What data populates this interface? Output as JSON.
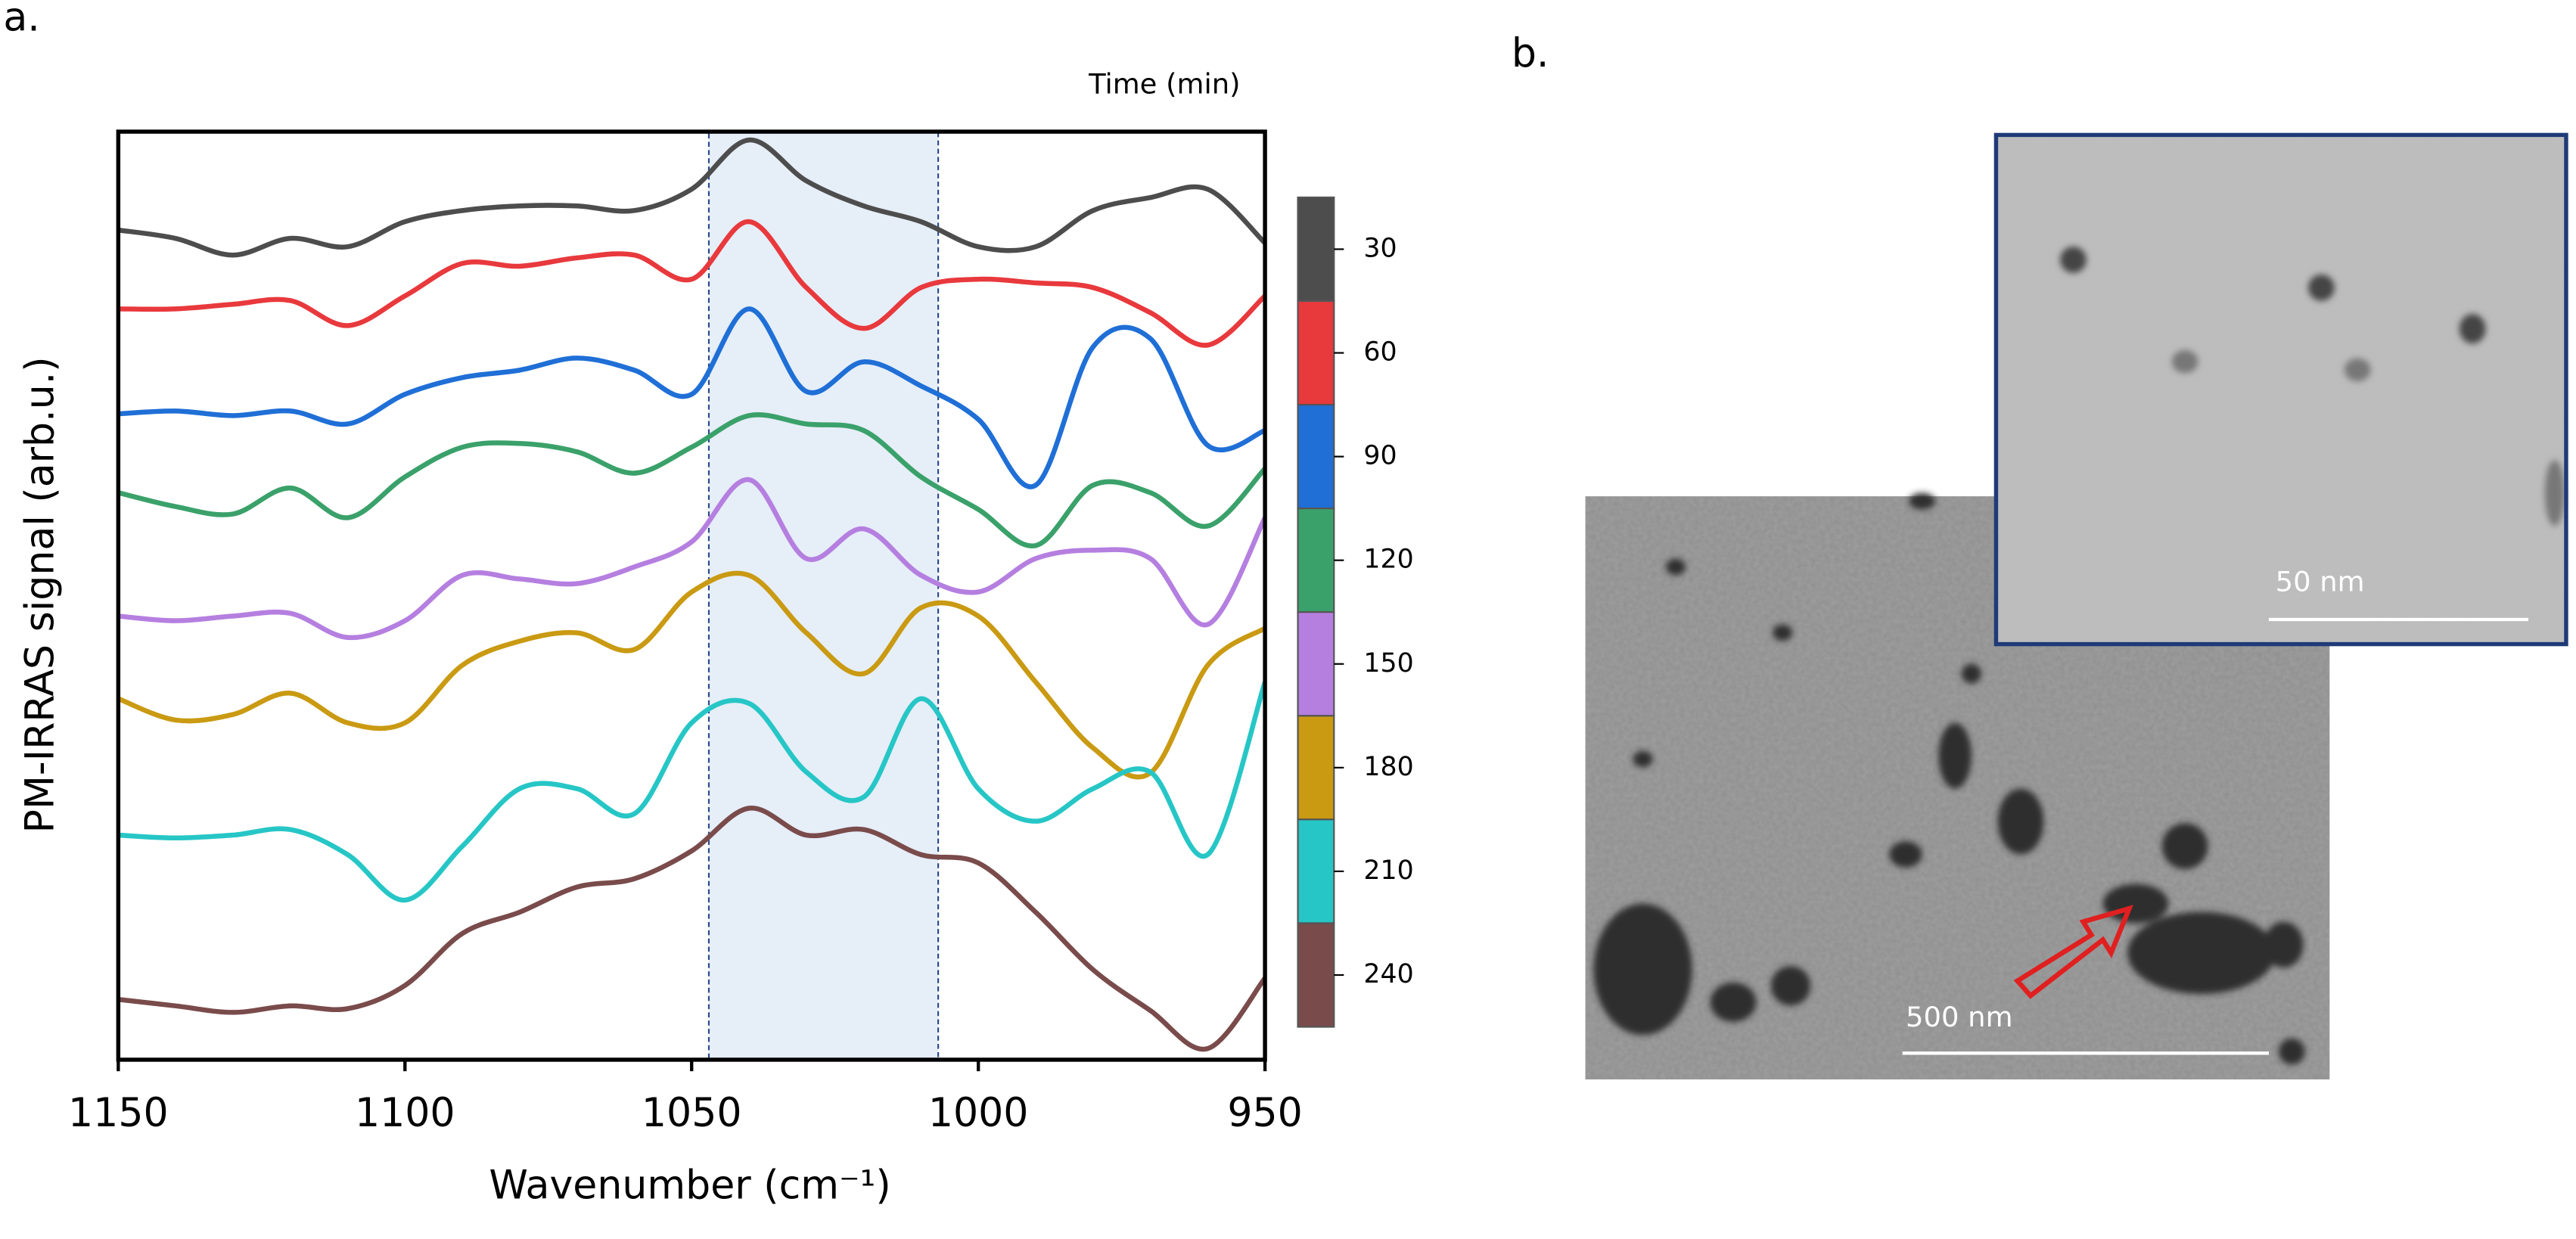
{
  "chart_data": {
    "type": "line",
    "panel_label": "a.",
    "x_label": "Wavenumber (cm⁻¹)",
    "y_label": "PM-IRRAS signal  (arb.u.)",
    "legend_title": "Time (min)",
    "x": [
      1150,
      1140,
      1130,
      1120,
      1110,
      1100,
      1090,
      1080,
      1070,
      1060,
      1050,
      1040,
      1030,
      1020,
      1010,
      1000,
      990,
      980,
      970,
      960,
      950
    ],
    "xlim": [
      1150,
      950
    ],
    "xticks": [
      1150,
      1100,
      1050,
      1000,
      950
    ],
    "ylim": [
      0,
      100
    ],
    "highlight": [
      1047,
      1007
    ],
    "series": [
      {
        "name": "30",
        "color": "#4d4d4d",
        "values": [
          89.4,
          88.5,
          86.7,
          88.5,
          87.6,
          90.3,
          91.5,
          92,
          92,
          91.5,
          93.8,
          99.1,
          94.7,
          92,
          90.3,
          87.6,
          87.6,
          91.5,
          92.9,
          93.8,
          88
        ]
      },
      {
        "name": "60",
        "color": "#e8393d",
        "values": [
          80.9,
          80.9,
          81.4,
          81.8,
          79.1,
          82.3,
          85.8,
          85.5,
          86.4,
          86.7,
          84.1,
          90.3,
          83.2,
          78.8,
          83.2,
          84.1,
          83.7,
          83.2,
          80.5,
          77,
          82.3
        ]
      },
      {
        "name": "90",
        "color": "#1f6fd6",
        "values": [
          69.6,
          69.9,
          69.4,
          69.9,
          68.5,
          71.7,
          73.5,
          74.3,
          75.6,
          74.3,
          71.7,
          80.9,
          72,
          75.2,
          72.6,
          69,
          61.9,
          76.8,
          77.7,
          66.2,
          67.8
        ]
      },
      {
        "name": "120",
        "color": "#3aa16a",
        "values": [
          61.1,
          59.6,
          58.8,
          61.6,
          58.4,
          62.8,
          66,
          66.4,
          65.5,
          63.2,
          66,
          69.4,
          68.5,
          67.8,
          62.8,
          59.3,
          55.4,
          61.9,
          61.1,
          57.5,
          63.7
        ]
      },
      {
        "name": "150",
        "color": "#b57fe0",
        "values": [
          47.8,
          47.3,
          47.8,
          48.1,
          45.5,
          47.3,
          52.2,
          51.8,
          51.3,
          53.1,
          55.8,
          62.5,
          54,
          57.2,
          52.2,
          50.4,
          54,
          54.9,
          54,
          46.9,
          58.4
        ]
      },
      {
        "name": "180",
        "color": "#c99a12",
        "values": [
          38.9,
          36.6,
          37.2,
          39.5,
          36.3,
          36.3,
          42.5,
          45.1,
          46,
          44.2,
          50.4,
          52.2,
          46,
          41.6,
          48.7,
          47.8,
          40.7,
          33.6,
          30.9,
          42.5,
          46.5
        ]
      },
      {
        "name": "210",
        "color": "#27c6c6",
        "values": [
          24.2,
          23.9,
          24.2,
          24.8,
          22.1,
          17.2,
          23,
          29.2,
          29.2,
          26.5,
          36.3,
          38.4,
          31,
          28.3,
          38.9,
          29.2,
          25.7,
          29.2,
          31,
          22.1,
          40.7
        ]
      },
      {
        "name": "240",
        "color": "#7a4b4b",
        "values": [
          6.5,
          5.8,
          5.1,
          5.8,
          5.5,
          8,
          13.6,
          15.9,
          18.6,
          19.5,
          22.5,
          27.1,
          24.2,
          24.8,
          22.1,
          21.2,
          15.9,
          9.7,
          5.3,
          1.2,
          8.8
        ]
      }
    ]
  },
  "image_panel": {
    "panel_label": "b.",
    "inset_scale_bar": "50 nm",
    "main_scale_bar": "500 nm"
  }
}
